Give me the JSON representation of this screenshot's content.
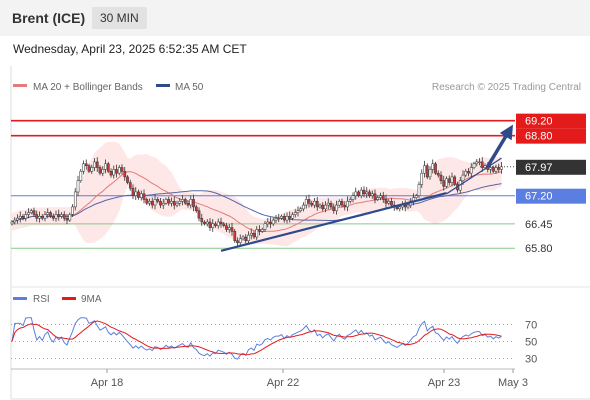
{
  "header": {
    "instrument": "Brent (ICE)",
    "timeframe": "30 MIN"
  },
  "datetime": "Wednesday, April 23, 2025 6:52:35 AM CET",
  "legend": {
    "bollinger": "MA 20 + Bollinger Bands",
    "ma50": "MA 50",
    "rsi": "RSI",
    "rsi_ma": "9MA"
  },
  "watermark": "Research © 2025 Trading Central",
  "colors": {
    "resistance": "#e31b1b",
    "support_line": "#5b7fe0",
    "minor_support": "#8cc78c",
    "trendline": "#2e4a8c",
    "current": "#333333",
    "up_candle": "#ffffff",
    "down_candle": "#c63b3b",
    "bollinger_fill": "#fbd4d4",
    "ma20": "#e47a7a",
    "ma50": "#5566a8",
    "rsi": "#5b7fe0",
    "rsi_ma": "#e31b1b"
  },
  "chart_data": [
    {
      "type": "candlestick",
      "x_ticks": [
        "Apr 18",
        "Apr 22",
        "Apr 23",
        "May 3"
      ],
      "ylim": [
        64.9,
        69.75
      ],
      "levels": [
        {
          "label": "69.20",
          "value": 69.2,
          "kind": "resistance",
          "boxed": true
        },
        {
          "label": "68.80",
          "value": 68.8,
          "kind": "resistance",
          "boxed": true
        },
        {
          "label": "67.97",
          "value": 67.97,
          "kind": "current",
          "boxed": true
        },
        {
          "label": "67.20",
          "value": 67.2,
          "kind": "pivot",
          "boxed": true
        },
        {
          "label": "66.45",
          "value": 66.45,
          "kind": "support",
          "boxed": false
        },
        {
          "label": "65.80",
          "value": 65.8,
          "kind": "support",
          "boxed": false
        }
      ],
      "closes": [
        66.5,
        66.55,
        66.6,
        66.65,
        66.6,
        66.7,
        66.75,
        66.8,
        66.7,
        66.6,
        66.65,
        66.6,
        66.7,
        66.75,
        66.65,
        66.6,
        66.7,
        66.65,
        66.7,
        66.6,
        66.55,
        66.7,
        66.9,
        67.3,
        67.6,
        67.85,
        68.05,
        68.0,
        67.85,
        67.95,
        68.1,
        67.95,
        67.8,
        67.9,
        68.05,
        67.85,
        67.75,
        67.9,
        67.8,
        67.95,
        67.85,
        67.7,
        67.55,
        67.4,
        67.2,
        67.3,
        67.15,
        67.25,
        67.1,
        67.0,
        67.05,
        66.95,
        67.1,
        67.05,
        66.95,
        67.0,
        67.1,
        67.0,
        67.05,
        66.95,
        67.0,
        67.05,
        67.1,
        67.0,
        66.95,
        67.1,
        66.9,
        66.8,
        66.6,
        66.5,
        66.45,
        66.5,
        66.35,
        66.45,
        66.4,
        66.5,
        66.45,
        66.4,
        66.3,
        66.35,
        66.25,
        66.0,
        65.95,
        66.05,
        66.1,
        66.0,
        66.15,
        66.2,
        66.1,
        66.3,
        66.25,
        66.3,
        66.45,
        66.5,
        66.45,
        66.55,
        66.6,
        66.6,
        66.65,
        66.55,
        66.65,
        66.6,
        66.7,
        66.75,
        66.8,
        66.85,
        66.95,
        67.1,
        67.0,
        66.95,
        67.05,
        66.9,
        66.95,
        66.85,
        66.95,
        67.0,
        66.9,
        66.8,
        66.95,
        67.05,
        66.95,
        66.9,
        67.05,
        67.1,
        67.2,
        67.3,
        67.2,
        67.35,
        67.25,
        67.3,
        67.2,
        67.25,
        67.1,
        67.15,
        67.2,
        67.1,
        67.0,
        67.05,
        66.95,
        66.9,
        66.85,
        66.9,
        66.95,
        66.9,
        66.95,
        67.05,
        67.15,
        67.2,
        67.5,
        67.8,
        68.0,
        67.7,
        67.9,
        68.05,
        67.8,
        67.75,
        67.6,
        67.45,
        67.65,
        67.55,
        67.7,
        67.5,
        67.35,
        67.6,
        67.75,
        67.85,
        67.8,
        67.95,
        68.05,
        68.1,
        68.1,
        67.95,
        68.0,
        67.9,
        67.95,
        67.85,
        67.95,
        67.9,
        67.97
      ],
      "bollinger": {
        "period": 20,
        "std_dev": 2
      },
      "ma50": {
        "period": 50
      },
      "trendlines": [
        {
          "from_index": 76,
          "from_value": 65.73,
          "to_index": 158,
          "to_value": 67.27
        },
        {
          "from_index": 158,
          "from_value": 67.25,
          "to_index": 178,
          "to_value": 68.2
        }
      ],
      "projection": {
        "from_index": 170,
        "from_value": 67.97,
        "to_value": 69.2
      }
    },
    {
      "type": "line",
      "ylim": [
        20,
        80
      ],
      "y_ticks": [
        70,
        50,
        30
      ],
      "series": [
        {
          "name": "RSI",
          "period": 14,
          "source": "closes"
        },
        {
          "name": "9MA",
          "period": 9,
          "source": "RSI"
        }
      ]
    }
  ]
}
